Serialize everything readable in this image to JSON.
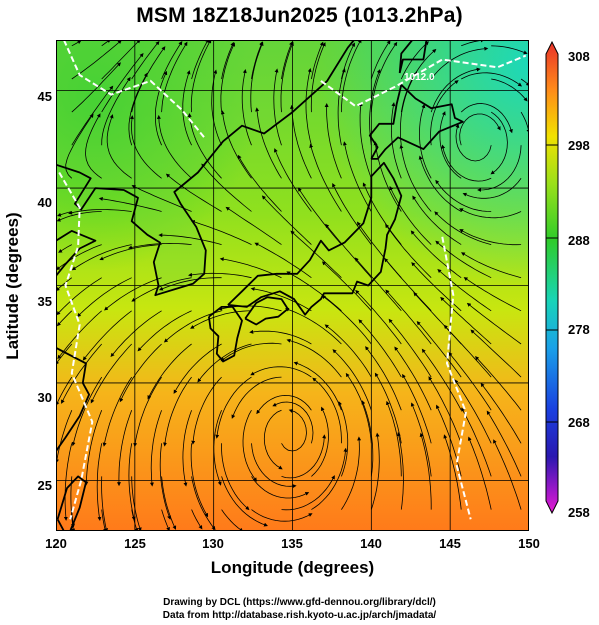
{
  "title": "MSM 18Z18Jun2025 (1013.2hPa)",
  "map": {
    "xlabel": "Longitude (degrees)",
    "ylabel": "Latitude  (degrees)",
    "x_ticks": [
      "120",
      "125",
      "130",
      "135",
      "140",
      "145",
      "150"
    ],
    "y_ticks": [
      "45",
      "40",
      "35",
      "30",
      "25"
    ],
    "lon_range": [
      120,
      150
    ],
    "lat_range": [
      22.4,
      47.6
    ],
    "isobar_label": "1012.0",
    "colors": {
      "warm": "#ff7a1a",
      "mid": "#e6e600",
      "cool": "#22cc33",
      "cold": "#19d8c0",
      "coast": "#000000",
      "isobar": "#ffffff"
    }
  },
  "colorbar": {
    "max_label": "308",
    "min_label": "258",
    "ticks": [
      "298",
      "288",
      "278",
      "268"
    ],
    "range": [
      258,
      308
    ]
  },
  "credits": {
    "line1": "Drawing by DCL (https://www.gfd-dennou.org/library/dcl/)",
    "line2": "Data from http://database.rish.kyoto-u.ac.jp/arch/jmadata/"
  }
}
